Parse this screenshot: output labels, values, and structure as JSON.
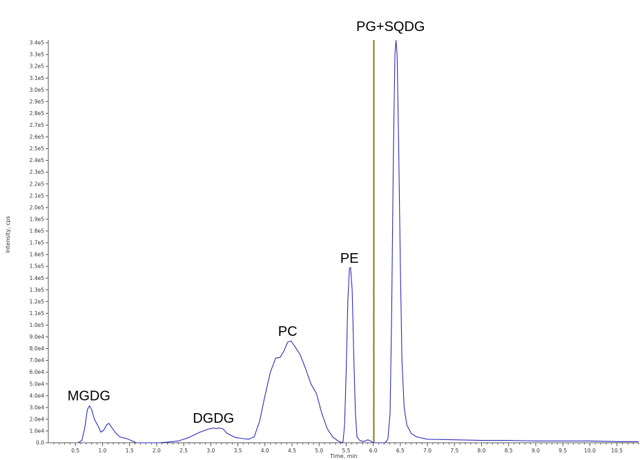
{
  "chart_data": {
    "type": "line",
    "xlabel": "Time, min",
    "ylabel": "Intensity, cps",
    "xlim": [
      0.0,
      10.9
    ],
    "ylim": [
      0,
      340000
    ],
    "x_ticks": [
      "0.5",
      "1.0",
      "1.5",
      "2.0",
      "2.5",
      "3.0",
      "3.5",
      "4.0",
      "4.5",
      "5.0",
      "5.5",
      "6.0",
      "6.5",
      "7.0",
      "7.5",
      "8.0",
      "8.5",
      "9.0",
      "9.5",
      "10.0",
      "10.5"
    ],
    "x_tick_values": [
      0.5,
      1.0,
      1.5,
      2.0,
      2.5,
      3.0,
      3.5,
      4.0,
      4.5,
      5.0,
      5.5,
      6.0,
      6.5,
      7.0,
      7.5,
      8.0,
      8.5,
      9.0,
      9.5,
      10.0,
      10.5
    ],
    "y_ticks": [
      "0.0",
      "1.0e4",
      "2.0e4",
      "3.0e4",
      "4.0e4",
      "5.0e4",
      "6.0e4",
      "7.0e4",
      "8.0e4",
      "9.0e4",
      "1.0e5",
      "1.1e5",
      "1.2e5",
      "1.3e5",
      "1.4e5",
      "1.5e5",
      "1.6e5",
      "1.7e5",
      "1.8e5",
      "1.9e5",
      "2.0e5",
      "2.1e5",
      "2.2e5",
      "2.3e5",
      "2.4e5",
      "2.5e5",
      "2.6e5",
      "2.7e5",
      "2.8e5",
      "2.9e5",
      "3.0e5",
      "3.1e5",
      "3.2e5",
      "3.3e5",
      "3.4e5"
    ],
    "y_tick_values": [
      0,
      10000,
      20000,
      30000,
      40000,
      50000,
      60000,
      70000,
      80000,
      90000,
      100000,
      110000,
      120000,
      130000,
      140000,
      150000,
      160000,
      170000,
      180000,
      190000,
      200000,
      210000,
      220000,
      230000,
      240000,
      250000,
      260000,
      270000,
      280000,
      290000,
      300000,
      310000,
      320000,
      330000,
      340000
    ],
    "series": [
      {
        "color": "#2a2ab8",
        "points": [
          [
            0.55,
            0
          ],
          [
            0.62,
            2000
          ],
          [
            0.67,
            12000
          ],
          [
            0.72,
            28000
          ],
          [
            0.76,
            31500
          ],
          [
            0.8,
            28000
          ],
          [
            0.85,
            20000
          ],
          [
            0.92,
            14000
          ],
          [
            0.97,
            9000
          ],
          [
            1.02,
            10500
          ],
          [
            1.08,
            15500
          ],
          [
            1.12,
            16500
          ],
          [
            1.17,
            13000
          ],
          [
            1.25,
            8000
          ],
          [
            1.32,
            5000
          ],
          [
            1.45,
            3500
          ],
          [
            1.55,
            1500
          ],
          [
            1.62,
            0
          ],
          [
            2.05,
            0
          ],
          [
            2.2,
            500
          ],
          [
            2.4,
            1500
          ],
          [
            2.6,
            4500
          ],
          [
            2.8,
            9000
          ],
          [
            2.95,
            11500
          ],
          [
            3.05,
            12500
          ],
          [
            3.1,
            12000
          ],
          [
            3.15,
            12500
          ],
          [
            3.22,
            12000
          ],
          [
            3.3,
            8000
          ],
          [
            3.45,
            4500
          ],
          [
            3.6,
            3500
          ],
          [
            3.7,
            3000
          ],
          [
            3.8,
            5000
          ],
          [
            3.9,
            18000
          ],
          [
            4.0,
            40000
          ],
          [
            4.1,
            60000
          ],
          [
            4.2,
            72000
          ],
          [
            4.28,
            72500
          ],
          [
            4.35,
            78000
          ],
          [
            4.42,
            85500
          ],
          [
            4.48,
            86500
          ],
          [
            4.55,
            82000
          ],
          [
            4.65,
            75000
          ],
          [
            4.75,
            63000
          ],
          [
            4.85,
            50000
          ],
          [
            4.95,
            42000
          ],
          [
            5.05,
            25000
          ],
          [
            5.15,
            12000
          ],
          [
            5.25,
            5000
          ],
          [
            5.35,
            1500
          ],
          [
            5.4,
            500
          ],
          [
            5.44,
            0
          ],
          [
            5.47,
            15000
          ],
          [
            5.5,
            60000
          ],
          [
            5.53,
            120000
          ],
          [
            5.56,
            148000
          ],
          [
            5.58,
            149000
          ],
          [
            5.61,
            130000
          ],
          [
            5.64,
            75000
          ],
          [
            5.67,
            25000
          ],
          [
            5.7,
            5000
          ],
          [
            5.75,
            2000
          ],
          [
            5.82,
            1000
          ],
          [
            5.9,
            2500
          ],
          [
            5.95,
            1500
          ],
          [
            6.0,
            0
          ],
          [
            6.22,
            0
          ],
          [
            6.27,
            3000
          ],
          [
            6.31,
            25000
          ],
          [
            6.34,
            110000
          ],
          [
            6.37,
            240000
          ],
          [
            6.4,
            330000
          ],
          [
            6.42,
            342000
          ],
          [
            6.44,
            330000
          ],
          [
            6.47,
            250000
          ],
          [
            6.5,
            150000
          ],
          [
            6.53,
            70000
          ],
          [
            6.57,
            30000
          ],
          [
            6.62,
            15000
          ],
          [
            6.7,
            8000
          ],
          [
            6.8,
            5000
          ],
          [
            7.0,
            3000
          ],
          [
            7.5,
            2500
          ],
          [
            8.0,
            2000
          ],
          [
            8.5,
            2000
          ],
          [
            9.0,
            1500
          ],
          [
            9.5,
            1500
          ],
          [
            10.0,
            1500
          ],
          [
            10.5,
            1000
          ],
          [
            10.9,
            1000
          ]
        ]
      }
    ],
    "vertical_marker": {
      "x": 6.01,
      "color": "#8b7a14"
    },
    "annotations": [
      {
        "text": "MGDG",
        "x": 0.75,
        "y": 36000
      },
      {
        "text": "DGDG",
        "x": 3.05,
        "y": 17000
      },
      {
        "text": "PC",
        "x": 4.42,
        "y": 91000
      },
      {
        "text": "PE",
        "x": 5.56,
        "y": 153000
      },
      {
        "text": "PG+SQDG",
        "x": 6.32,
        "y": 350000
      }
    ]
  }
}
